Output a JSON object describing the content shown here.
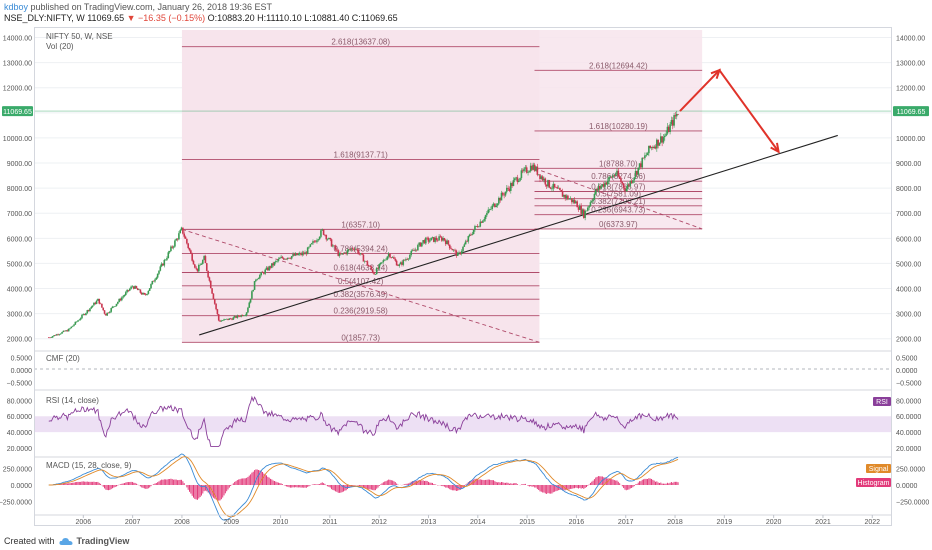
{
  "header": {
    "author": "kdboy",
    "published": "published on TradingView.com, January 26, 2018 19:36 EST",
    "symbol_line": "NSE_DLY:NIFTY, W",
    "last": "11069.65",
    "change": "−16.35 (−0.15%)",
    "ohlc": "O:10883.20 H:11110.10 L:10881.40 C:11069.65"
  },
  "footer": {
    "created_with": "Created with",
    "brand": "TradingView"
  },
  "colors": {
    "candle_up": "#3a9a52",
    "candle_down": "#c9354f",
    "fib_band": "#f7e4ec",
    "fib_line": "#b04b6a",
    "fib_text": "#8a5a6a",
    "trend_line": "#222222",
    "arrow": "#e0332a",
    "rsi": "#8a3f9a",
    "rsi_band": "#ede0f4",
    "macd": "#3a8bd6",
    "signal": "#e08a2a",
    "histogram": "#e23a7a",
    "price_marker": "#3aaa6a",
    "axis_text": "#555555",
    "grid": "#eef0f3"
  },
  "chart_data": [
    {
      "type": "candlestick",
      "title": "NIFTY 50, W, NSE",
      "subtitle": "Vol (20)",
      "x_ticks": [
        "2006",
        "2007",
        "2008",
        "2009",
        "2010",
        "2011",
        "2012",
        "2013",
        "2014",
        "2015",
        "2016",
        "2017",
        "2018",
        "2019",
        "2020",
        "2021",
        "2022"
      ],
      "y_ticks": [
        "14000.00",
        "13000.00",
        "12000.00",
        "11000.00",
        "10000.00",
        "9000.00",
        "8000.00",
        "7000.00",
        "6000.00",
        "5000.00",
        "4000.00",
        "3000.00",
        "2000.00"
      ],
      "ylim": [
        1750,
        14300
      ],
      "last_price_label": "11069.65",
      "anchors": [
        {
          "x": 2005.3,
          "y": 2050
        },
        {
          "x": 2005.7,
          "y": 2350
        },
        {
          "x": 2006.3,
          "y": 3550
        },
        {
          "x": 2006.45,
          "y": 2950
        },
        {
          "x": 2007.0,
          "y": 4100
        },
        {
          "x": 2007.25,
          "y": 3700
        },
        {
          "x": 2007.7,
          "y": 5300
        },
        {
          "x": 2008.0,
          "y": 6357
        },
        {
          "x": 2008.3,
          "y": 4700
        },
        {
          "x": 2008.45,
          "y": 5200
        },
        {
          "x": 2008.75,
          "y": 2700
        },
        {
          "x": 2009.0,
          "y": 2800
        },
        {
          "x": 2009.3,
          "y": 3000
        },
        {
          "x": 2009.5,
          "y": 4400
        },
        {
          "x": 2010.0,
          "y": 5200
        },
        {
          "x": 2010.5,
          "y": 5400
        },
        {
          "x": 2010.85,
          "y": 6300
        },
        {
          "x": 2011.2,
          "y": 5300
        },
        {
          "x": 2011.5,
          "y": 5650
        },
        {
          "x": 2011.9,
          "y": 4600
        },
        {
          "x": 2012.2,
          "y": 5400
        },
        {
          "x": 2012.4,
          "y": 4900
        },
        {
          "x": 2012.9,
          "y": 5900
        },
        {
          "x": 2013.3,
          "y": 6000
        },
        {
          "x": 2013.6,
          "y": 5300
        },
        {
          "x": 2013.9,
          "y": 6300
        },
        {
          "x": 2014.4,
          "y": 7500
        },
        {
          "x": 2014.8,
          "y": 8400
        },
        {
          "x": 2015.1,
          "y": 8900
        },
        {
          "x": 2015.4,
          "y": 8200
        },
        {
          "x": 2015.75,
          "y": 7700
        },
        {
          "x": 2016.0,
          "y": 7400
        },
        {
          "x": 2016.15,
          "y": 6950
        },
        {
          "x": 2016.4,
          "y": 7900
        },
        {
          "x": 2016.8,
          "y": 8600
        },
        {
          "x": 2017.0,
          "y": 7950
        },
        {
          "x": 2017.5,
          "y": 9600
        },
        {
          "x": 2017.8,
          "y": 10100
        },
        {
          "x": 2018.07,
          "y": 11069.65
        }
      ]
    },
    {
      "type": "line",
      "title": "CMF (20)",
      "y_ticks": [
        "0.5000",
        "0.0000",
        "−0.5000"
      ],
      "ylim": [
        -0.55,
        0.55
      ]
    },
    {
      "type": "line",
      "title": "RSI (14, close)",
      "legend": "RSI",
      "y_ticks": [
        "80.0000",
        "60.0000",
        "40.0000",
        "20.0000"
      ],
      "ylim": [
        15,
        88
      ],
      "band": [
        40,
        60
      ]
    },
    {
      "type": "line",
      "title": "MACD (15, 28, close, 9)",
      "legend": [
        "Signal",
        "Histogram"
      ],
      "y_ticks": [
        "250.0000",
        "0.0000",
        "−250.0000"
      ],
      "ylim": [
        -380,
        380
      ]
    }
  ],
  "fib_left": {
    "x_start": 2008.0,
    "x_end": 2015.25,
    "levels": [
      {
        "price": 13637.08,
        "label": "2.618(13637.08)"
      },
      {
        "price": 9137.71,
        "label": "1.618(9137.71)"
      },
      {
        "price": 6357.1,
        "label": "1(6357.10)"
      },
      {
        "price": 5394.24,
        "label": "0.786(5394.24)"
      },
      {
        "price": 4638.14,
        "label": "0.618(4638.14)"
      },
      {
        "price": 4107.42,
        "label": "0.5(4107.42)"
      },
      {
        "price": 3576.49,
        "label": "0.382(3576.49)"
      },
      {
        "price": 2919.58,
        "label": "0.236(2919.58)"
      },
      {
        "price": 1857.73,
        "label": "0(1857.73)"
      }
    ]
  },
  "fib_right": {
    "x_start": 2015.15,
    "x_end": 2018.55,
    "levels": [
      {
        "price": 12694.42,
        "label": "2.618(12694.42)"
      },
      {
        "price": 10280.19,
        "label": "1.618(10280.19)"
      },
      {
        "price": 8788.7,
        "label": "1(8788.70)"
      },
      {
        "price": 8274.56,
        "label": "0.786(8274.56)"
      },
      {
        "price": 7865.97,
        "label": "0.618(7865.97)"
      },
      {
        "price": 7581.09,
        "label": "0.5(7581.09)"
      },
      {
        "price": 7296.21,
        "label": "0.382(7296.21)"
      },
      {
        "price": 6943.73,
        "label": "0.236(6943.73)"
      },
      {
        "price": 6373.97,
        "label": "0(6373.97)"
      }
    ]
  },
  "trend_line": {
    "x1": 2008.35,
    "y1": 2150,
    "x2": 2021.3,
    "y2": 10100
  },
  "forecast_arrow": [
    {
      "x": 2018.1,
      "y": 11069.65
    },
    {
      "x": 2018.9,
      "y": 12700
    },
    {
      "x": 2020.1,
      "y": 9450
    }
  ]
}
